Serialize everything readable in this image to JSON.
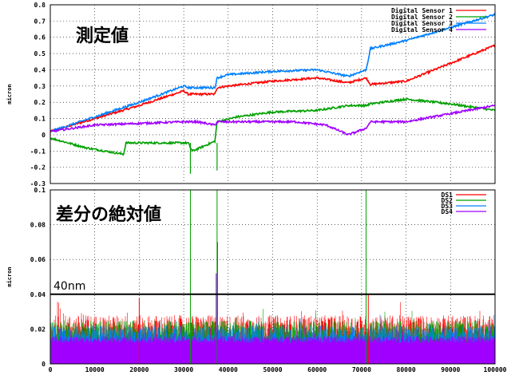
{
  "chart_data": [
    {
      "type": "line",
      "annotation": "測定値",
      "ylabel": "micron",
      "xlim": [
        0,
        100000
      ],
      "ylim": [
        -0.3,
        0.8
      ],
      "ytick_labels": [
        "-0.3",
        "-0.2",
        "-0.1",
        "0",
        "0.1",
        "0.2",
        "0.3",
        "0.4",
        "0.5",
        "0.6",
        "0.7",
        "0.8"
      ],
      "grid": true,
      "legend_position": "top-right",
      "series": [
        {
          "name": "Digital Sensor 1",
          "color": "#ff0000",
          "x": [
            0,
            10000,
            20000,
            30000,
            31000,
            37000,
            37500,
            40000,
            50000,
            60000,
            67000,
            71000,
            72000,
            80000,
            90000,
            100000
          ],
          "y": [
            0.02,
            0.1,
            0.18,
            0.27,
            0.25,
            0.25,
            0.29,
            0.3,
            0.33,
            0.35,
            0.32,
            0.35,
            0.31,
            0.33,
            0.44,
            0.55
          ]
        },
        {
          "name": "Digital Sensor 2",
          "color": "#00a000",
          "x": [
            0,
            8000,
            16500,
            17000,
            19000,
            27000,
            31000,
            31500,
            32000,
            37000,
            37500,
            42000,
            50000,
            60000,
            67000,
            71000,
            72000,
            80000,
            90000,
            100000
          ],
          "y": [
            -0.02,
            -0.08,
            -0.12,
            -0.05,
            -0.05,
            -0.05,
            -0.05,
            -0.08,
            -0.1,
            -0.04,
            0.08,
            0.11,
            0.14,
            0.15,
            0.18,
            0.18,
            0.19,
            0.22,
            0.19,
            0.15
          ]
        },
        {
          "name": "Digital Sensor 3",
          "color": "#0080ff",
          "x": [
            0,
            10000,
            20000,
            30000,
            31000,
            37000,
            37500,
            40000,
            50000,
            60000,
            67000,
            71000,
            72000,
            80000,
            90000,
            100000
          ],
          "y": [
            0.02,
            0.11,
            0.2,
            0.3,
            0.29,
            0.29,
            0.35,
            0.37,
            0.39,
            0.4,
            0.36,
            0.4,
            0.53,
            0.58,
            0.66,
            0.74
          ]
        },
        {
          "name": "Digital Sensor 4",
          "color": "#a000ff",
          "x": [
            0,
            10000,
            20000,
            30000,
            33000,
            37000,
            37500,
            45000,
            55000,
            62000,
            67000,
            70000,
            71000,
            72000,
            80000,
            90000,
            100000
          ],
          "y": [
            0.02,
            0.06,
            0.07,
            0.08,
            0.08,
            0.06,
            0.08,
            0.08,
            0.08,
            0.06,
            0.0,
            0.03,
            0.04,
            0.08,
            0.08,
            0.13,
            0.18
          ]
        }
      ]
    },
    {
      "type": "line",
      "annotation": "差分の絶対値",
      "ylabel": "micron",
      "xlim": [
        0,
        100000
      ],
      "ylim": [
        0,
        0.1
      ],
      "ytick_labels": [
        "0",
        "0.02",
        "0.04",
        "0.06",
        "0.08",
        "0.1"
      ],
      "xtick_labels": [
        "0",
        "10000",
        "20000",
        "30000",
        "40000",
        "50000",
        "60000",
        "70000",
        "80000",
        "90000",
        "100000"
      ],
      "grid": true,
      "legend_position": "top-right",
      "threshold": {
        "value": 0.04,
        "label": "40nm"
      },
      "series": [
        {
          "name": "DS1",
          "color": "#ff0000",
          "typical_max": 0.028,
          "spikes": [
            {
              "x": 71500,
              "y": 0.04
            },
            {
              "x": 20000,
              "y": 0.038
            }
          ]
        },
        {
          "name": "DS2",
          "color": "#00a000",
          "typical_max": 0.025,
          "spikes": [
            {
              "x": 31500,
              "y": 0.1
            },
            {
              "x": 37500,
              "y": 0.1
            },
            {
              "x": 71000,
              "y": 0.1
            }
          ]
        },
        {
          "name": "DS3",
          "color": "#0080ff",
          "typical_max": 0.022,
          "spikes": []
        },
        {
          "name": "DS4",
          "color": "#a000ff",
          "typical_max": 0.016,
          "spikes": [
            {
              "x": 37300,
              "y": 0.052
            },
            {
              "x": 37600,
              "y": 0.07
            }
          ]
        }
      ]
    }
  ]
}
